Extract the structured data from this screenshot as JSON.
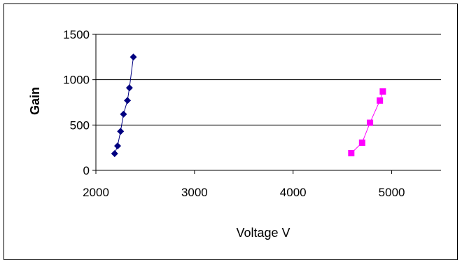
{
  "chart_data": {
    "type": "scatter",
    "xlabel": "Voltage V",
    "ylabel": "Gain",
    "xlim": [
      2000,
      5500
    ],
    "ylim": [
      0,
      1500
    ],
    "x_ticks": [
      2000,
      3000,
      4000,
      5000
    ],
    "y_ticks": [
      0,
      500,
      1000,
      1500
    ],
    "x_tick_labels": [
      "2000",
      "3000",
      "4000",
      "5000"
    ],
    "y_tick_labels": [
      "0",
      "500",
      "1000",
      "1500"
    ],
    "grid": "horizontal",
    "legend": "none",
    "series": [
      {
        "marker": "diamond",
        "color": "#000080",
        "points": [
          {
            "x": 2190,
            "y": 185
          },
          {
            "x": 2220,
            "y": 270
          },
          {
            "x": 2250,
            "y": 430
          },
          {
            "x": 2280,
            "y": 620
          },
          {
            "x": 2320,
            "y": 770
          },
          {
            "x": 2340,
            "y": 910
          },
          {
            "x": 2380,
            "y": 1250
          }
        ]
      },
      {
        "marker": "square",
        "color": "#FF00FF",
        "points": [
          {
            "x": 4590,
            "y": 190
          },
          {
            "x": 4700,
            "y": 305
          },
          {
            "x": 4780,
            "y": 525
          },
          {
            "x": 4880,
            "y": 770
          },
          {
            "x": 4910,
            "y": 870
          }
        ]
      }
    ]
  }
}
